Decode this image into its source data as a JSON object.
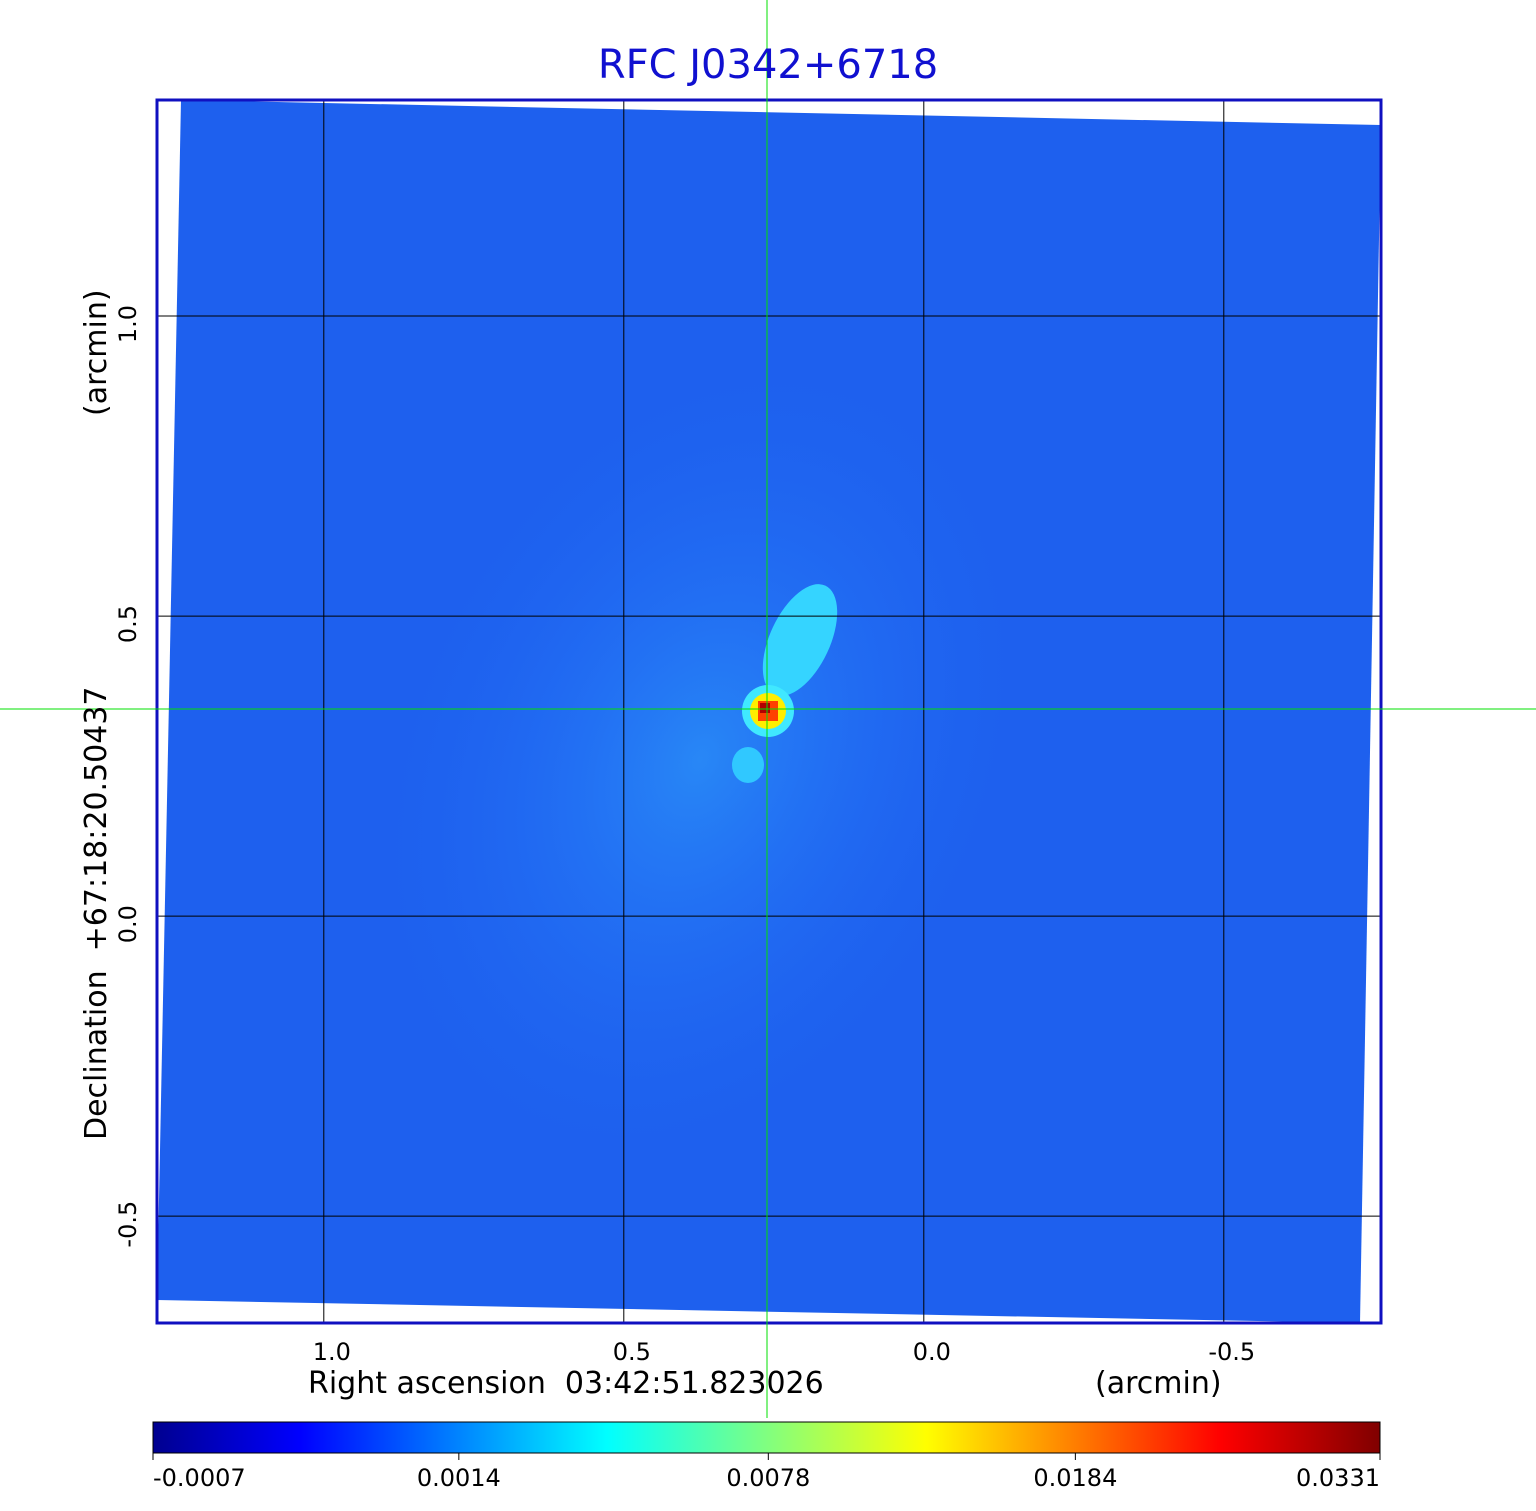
{
  "chart_data": {
    "type": "image",
    "title": "RFC J0342+6718",
    "x_label": "Right ascension  03:42:51.823026",
    "x_unit": "(arcmin)",
    "y_label": "Declination  +67:18:20.50437",
    "y_unit": "(arcmin)",
    "xlim": [
      1.278,
      -0.762
    ],
    "ylim": [
      -0.678,
      1.36
    ],
    "xticks": [
      {
        "value": 1,
        "label": "1.0"
      },
      0.5,
      {
        "value": 0,
        "label": "0.0"
      },
      -0.5
    ],
    "yticks": [
      {
        "value": -0.5,
        "label": "-0.5"
      },
      {
        "value": 0,
        "label": "0.0"
      },
      0.5,
      {
        "value": 1,
        "label": "1.0"
      }
    ],
    "grid": true,
    "colorbar": {
      "scale": "sqrt",
      "lim": [
        -0.0007,
        0.0331
      ],
      "ticks": [
        -0.0007,
        0.0014,
        0.0078,
        0.0184,
        0.0331
      ]
    }
  }
}
